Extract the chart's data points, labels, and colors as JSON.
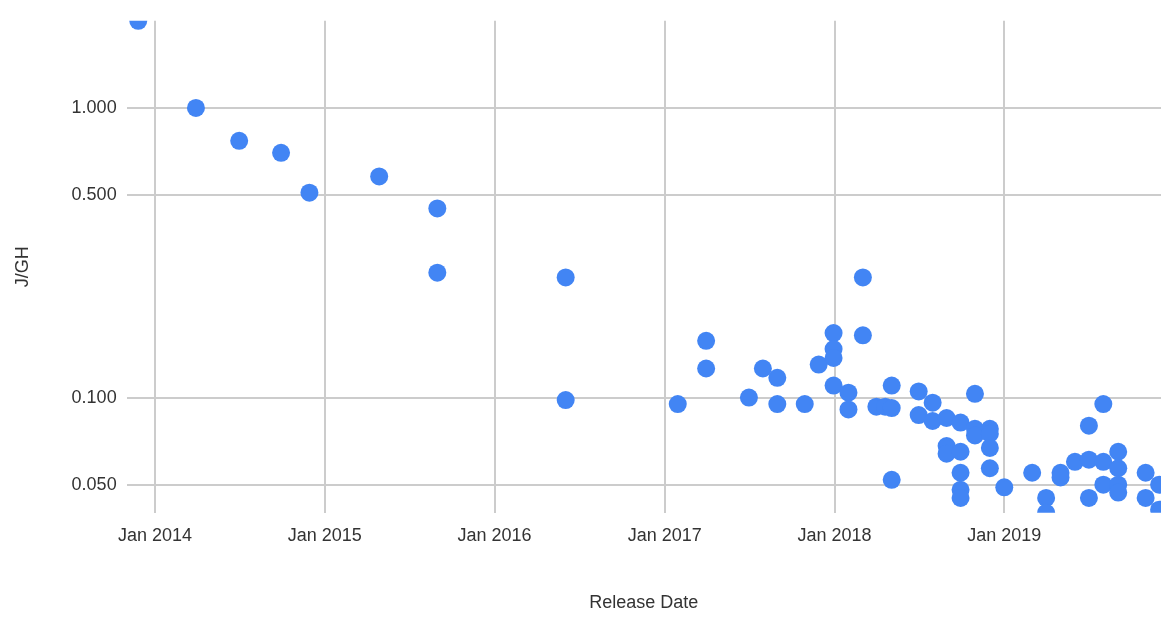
{
  "chart_data": {
    "type": "scatter",
    "xlabel": "Release Date",
    "ylabel": "J/GH",
    "log": "y",
    "grid": true,
    "legend": false,
    "marker": "circle",
    "xlim": [
      "2013-11-01",
      "2019-12-04"
    ],
    "xticks": [
      {
        "value": "2014-01-01",
        "label": "Jan 2014"
      },
      {
        "value": "2015-01-01",
        "label": "Jan 2015"
      },
      {
        "value": "2016-01-01",
        "label": "Jan 2016"
      },
      {
        "value": "2017-01-01",
        "label": "Jan 2017"
      },
      {
        "value": "2018-01-01",
        "label": "Jan 2018"
      },
      {
        "value": "2019-01-01",
        "label": "Jan 2019"
      }
    ],
    "ylim": [
      0.04,
      2
    ],
    "yticks": [
      {
        "value": 0.05,
        "label": "0.050"
      },
      {
        "value": 0.1,
        "label": "0.100"
      },
      {
        "value": 0.5,
        "label": "0.500"
      },
      {
        "value": 1,
        "label": "1.000"
      }
    ],
    "series": [
      {
        "color": "#4285f4",
        "x": [
          "2013-11-26",
          "2014-03-30",
          "2014-07-01",
          "2014-09-29",
          "2014-11-29",
          "2015-04-28",
          "2015-08-31",
          "2015-08-31",
          "2016-06-02",
          "2016-06-02",
          "2017-01-29",
          "2017-03-31",
          "2017-03-31",
          "2017-07-01",
          "2017-07-31",
          "2017-08-31",
          "2017-08-31",
          "2017-10-29",
          "2017-11-28",
          "2017-12-30",
          "2017-12-30",
          "2017-12-30",
          "2017-12-30",
          "2018-01-31",
          "2018-01-31",
          "2018-03-03",
          "2018-03-03",
          "2018-04-01",
          "2018-04-20",
          "2018-05-04",
          "2018-05-04",
          "2018-05-04",
          "2018-07-01",
          "2018-07-01",
          "2018-07-31",
          "2018-07-31",
          "2018-08-30",
          "2018-08-30",
          "2018-08-30",
          "2018-09-29",
          "2018-09-29",
          "2018-09-29",
          "2018-09-29",
          "2018-09-29",
          "2018-10-30",
          "2018-10-30",
          "2018-10-30",
          "2018-12-01",
          "2018-12-01",
          "2018-12-01",
          "2018-12-01",
          "2019-01-01",
          "2019-03-02",
          "2019-04-01",
          "2019-04-01",
          "2019-05-02",
          "2019-05-02",
          "2019-06-02",
          "2019-07-02",
          "2019-07-02",
          "2019-07-02",
          "2019-08-02",
          "2019-08-02",
          "2019-08-02",
          "2019-09-03",
          "2019-09-03",
          "2019-09-03",
          "2019-09-03",
          "2019-11-01",
          "2019-11-01",
          "2019-11-30",
          "2019-11-30"
        ],
        "values": [
          2.0,
          1.0,
          0.77,
          0.7,
          0.51,
          0.58,
          0.45,
          0.27,
          0.26,
          0.098,
          0.095,
          0.157,
          0.126,
          0.1,
          0.126,
          0.117,
          0.095,
          0.095,
          0.13,
          0.167,
          0.147,
          0.137,
          0.11,
          0.104,
          0.091,
          0.26,
          0.164,
          0.093,
          0.093,
          0.11,
          0.092,
          0.052,
          0.105,
          0.087,
          0.096,
          0.083,
          0.085,
          0.068,
          0.064,
          0.082,
          0.065,
          0.055,
          0.048,
          0.045,
          0.103,
          0.078,
          0.074,
          0.078,
          0.075,
          0.067,
          0.057,
          0.049,
          0.055,
          0.045,
          0.04,
          0.055,
          0.053,
          0.06,
          0.08,
          0.061,
          0.045,
          0.095,
          0.06,
          0.05,
          0.065,
          0.057,
          0.05,
          0.047,
          0.055,
          0.045,
          0.05,
          0.041
        ]
      }
    ]
  }
}
